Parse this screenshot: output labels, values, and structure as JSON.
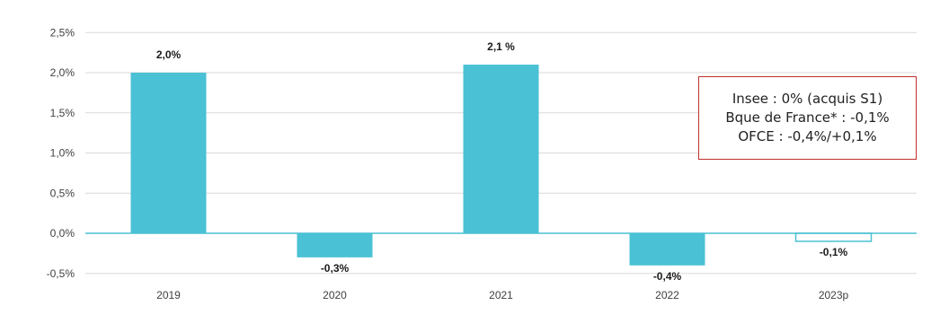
{
  "colors": {
    "bar_fill": "#4ac1d4",
    "bar_projection_fill": "#ffffff",
    "bar_projection_stroke": "#4ac1d4",
    "axis_line": "#4ac1d4",
    "gridline": "#d9d9d9",
    "annotation_border": "#c0302e"
  },
  "chart_data": {
    "type": "bar",
    "categories": [
      "2019",
      "2020",
      "2021",
      "2022",
      "2023p"
    ],
    "values": [
      2.0,
      -0.3,
      2.1,
      -0.4,
      -0.1
    ],
    "data_labels": [
      "2,0%",
      "-0,3%",
      "2,1 %",
      "-0,4%",
      "-0,1%"
    ],
    "projected": [
      false,
      false,
      false,
      false,
      true
    ],
    "y_ticks": [
      2.5,
      2.0,
      1.5,
      1.0,
      0.5,
      0.0,
      -0.5
    ],
    "y_tick_labels": [
      "2,5%",
      "2,0%",
      "1,5%",
      "1,0%",
      "0,5%",
      "0,0%",
      "-0,5%"
    ],
    "ylim": [
      -0.5,
      2.5
    ],
    "grid": true,
    "legend": "none",
    "annotation": {
      "lines": [
        "Insee : 0% (acquis S1)",
        "Bque de France* : -0,1%",
        "OFCE : -0,4%/+0,1%"
      ]
    }
  }
}
